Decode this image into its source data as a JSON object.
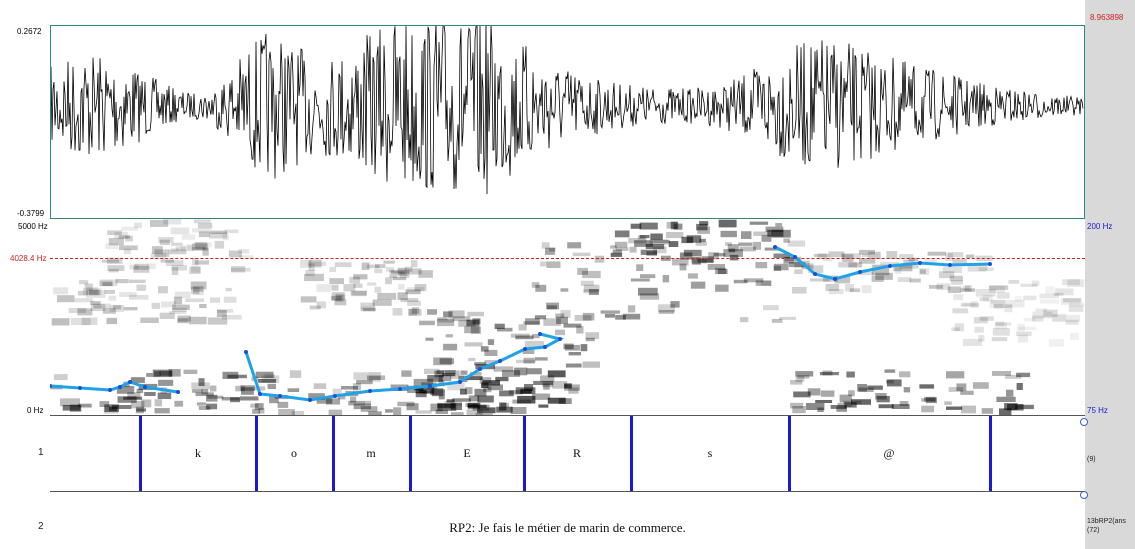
{
  "waveform": {
    "amp_max": "0.2672",
    "amp_min": "-0.3799",
    "time_end": "8.963898"
  },
  "spectrogram": {
    "freq_max": "5000 Hz",
    "freq_min": "0 Hz",
    "cursor_freq": "4028.4 Hz",
    "pitch_max": "200 Hz",
    "pitch_min": "75 Hz"
  },
  "tiers": [
    {
      "number": "1",
      "right_label": "(9)",
      "segments": [
        "k",
        "o",
        "m",
        "E",
        "R",
        "s",
        "@"
      ]
    },
    {
      "number": "2",
      "right_label_line1": "13bRP2(ans",
      "right_label_line2": "(72)",
      "text": "RP2: Je fais le métier de marin de commerce."
    }
  ],
  "colors": {
    "boundary": "#1a1ad4",
    "pitch": "#1fa2e6",
    "pane_border": "#2a8a8a",
    "time_end": "#cc2222",
    "cursor": "#cc2222"
  }
}
